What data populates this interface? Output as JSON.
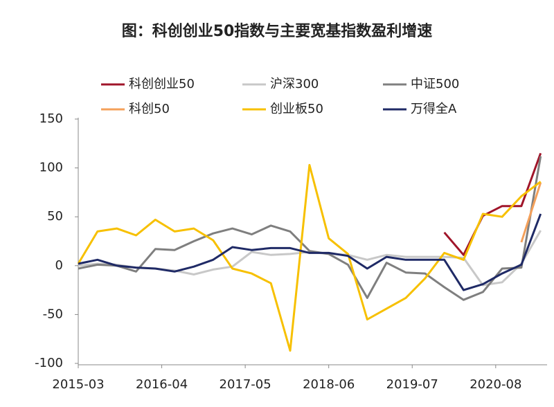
{
  "chart_data": {
    "type": "line",
    "title": "图：科创创业50指数与主要宽基指数盈利增速",
    "x": [
      "2015-03",
      "2015-06",
      "2015-09",
      "2015-12",
      "2016-03",
      "2016-06",
      "2016-09",
      "2016-12",
      "2017-03",
      "2017-06",
      "2017-09",
      "2017-12",
      "2018-03",
      "2018-06",
      "2018-09",
      "2018-12",
      "2019-03",
      "2019-06",
      "2019-09",
      "2019-12",
      "2020-03",
      "2020-06",
      "2020-09",
      "2020-12",
      "2021-03"
    ],
    "xlim": [
      "2015-03",
      "2021-04"
    ],
    "xticks": [
      "2015-03",
      "2016-04",
      "2017-05",
      "2018-06",
      "2019-07",
      "2020-08"
    ],
    "ylim": [
      -100,
      150
    ],
    "yticks": [
      150,
      100,
      50,
      0,
      -50,
      -100
    ],
    "legend": "top",
    "series": [
      {
        "name": "科创创业50",
        "color": "#a0152a",
        "values": [
          null,
          null,
          null,
          null,
          null,
          null,
          null,
          null,
          null,
          null,
          null,
          null,
          null,
          null,
          null,
          null,
          null,
          null,
          null,
          34,
          11,
          51,
          61,
          61,
          115
        ]
      },
      {
        "name": "沪深300",
        "color": "#c8c8c8",
        "values": [
          0,
          2,
          1,
          -2,
          -3,
          -5,
          -9,
          -4,
          -1,
          14,
          11,
          12,
          14,
          12,
          11,
          6,
          11,
          9,
          9,
          9,
          8,
          -20,
          -17,
          2,
          36
        ]
      },
      {
        "name": "中证500",
        "color": "#7f7f7f",
        "values": [
          -3,
          1,
          0,
          -6,
          17,
          16,
          25,
          33,
          38,
          32,
          41,
          35,
          15,
          12,
          1,
          -33,
          3,
          -7,
          -8,
          -22,
          -35,
          -27,
          -3,
          -2,
          112
        ]
      },
      {
        "name": "科创50",
        "color": "#f4a05a",
        "values": [
          null,
          null,
          null,
          null,
          null,
          null,
          null,
          null,
          null,
          null,
          null,
          null,
          null,
          null,
          null,
          null,
          null,
          null,
          null,
          null,
          null,
          null,
          null,
          24,
          85
        ]
      },
      {
        "name": "创业板50",
        "color": "#f7c000",
        "values": [
          2,
          35,
          38,
          31,
          47,
          35,
          38,
          26,
          -3,
          -8,
          -18,
          -87,
          103,
          28,
          12,
          -55,
          -44,
          -33,
          -13,
          13,
          6,
          53,
          50,
          71,
          86
        ]
      },
      {
        "name": "万得全A",
        "color": "#1f2a66",
        "values": [
          2,
          6,
          0,
          -2,
          -3,
          -6,
          -1,
          6,
          19,
          16,
          18,
          18,
          13,
          13,
          10,
          -3,
          9,
          6,
          6,
          6,
          -25,
          -19,
          -8,
          1,
          53
        ]
      }
    ]
  }
}
